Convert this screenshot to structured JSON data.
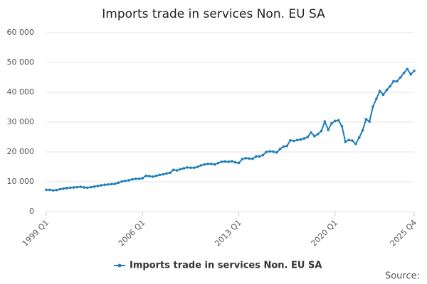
{
  "chart_data": {
    "type": "line",
    "title": "Imports trade in services Non. EU SA",
    "source": "Source:",
    "categories": [
      "1999 Q1",
      null,
      null,
      null,
      null,
      null,
      null,
      null,
      null,
      null,
      null,
      null,
      null,
      null,
      null,
      null,
      null,
      null,
      null,
      null,
      null,
      null,
      null,
      null,
      null,
      null,
      null,
      null,
      "2006 Q1",
      null,
      null,
      null,
      null,
      null,
      null,
      null,
      null,
      null,
      null,
      null,
      null,
      null,
      null,
      null,
      null,
      null,
      null,
      null,
      null,
      null,
      null,
      null,
      null,
      null,
      null,
      null,
      "2013 Q1",
      null,
      null,
      null,
      null,
      null,
      null,
      null,
      null,
      null,
      null,
      null,
      null,
      null,
      null,
      null,
      null,
      null,
      null,
      null,
      null,
      null,
      null,
      null,
      null,
      null,
      null,
      null,
      "2020 Q1",
      null,
      null,
      null,
      null,
      null,
      null,
      null,
      null,
      null,
      null,
      null,
      null,
      null,
      null,
      null,
      null,
      null,
      null,
      null,
      null,
      null,
      null,
      "2025 Q4"
    ],
    "series": [
      {
        "name": "Imports trade in services Non. EU SA",
        "color": "#1f7eb8",
        "values": [
          7300,
          7300,
          7100,
          7200,
          7500,
          7700,
          7900,
          8000,
          8100,
          8200,
          8300,
          8100,
          8000,
          8200,
          8400,
          8600,
          8800,
          9000,
          9100,
          9200,
          9300,
          9700,
          10100,
          10300,
          10500,
          10800,
          11000,
          11000,
          11200,
          12000,
          11900,
          11700,
          12000,
          12300,
          12500,
          12800,
          13000,
          14000,
          13800,
          14200,
          14500,
          14800,
          14700,
          14700,
          15000,
          15500,
          15800,
          16000,
          16000,
          15800,
          16300,
          16700,
          16800,
          16700,
          16900,
          16500,
          16300,
          17600,
          17900,
          17800,
          17700,
          18500,
          18500,
          18900,
          20000,
          20200,
          20100,
          19800,
          21000,
          21800,
          22000,
          23900,
          23700,
          24000,
          24200,
          24500,
          25000,
          26500,
          25300,
          26000,
          27000,
          30200,
          27400,
          29600,
          30400,
          30600,
          28600,
          23400,
          24000,
          23800,
          22700,
          24800,
          27200,
          31000,
          30200,
          35200,
          37800,
          40400,
          39200,
          40800,
          42000,
          43700,
          43700,
          45000,
          46500,
          47800,
          46000,
          47200
        ]
      }
    ],
    "ylim": [
      0,
      60000
    ],
    "yticks": [
      0,
      {
        "value": 10000,
        "label": "10 000"
      },
      {
        "value": 20000,
        "label": "20 000"
      },
      {
        "value": 30000,
        "label": "30 000"
      },
      {
        "value": 40000,
        "label": "40 000"
      },
      {
        "value": 50000,
        "label": "50 000"
      },
      {
        "value": 60000,
        "label": "60 000"
      }
    ],
    "grid": true
  }
}
